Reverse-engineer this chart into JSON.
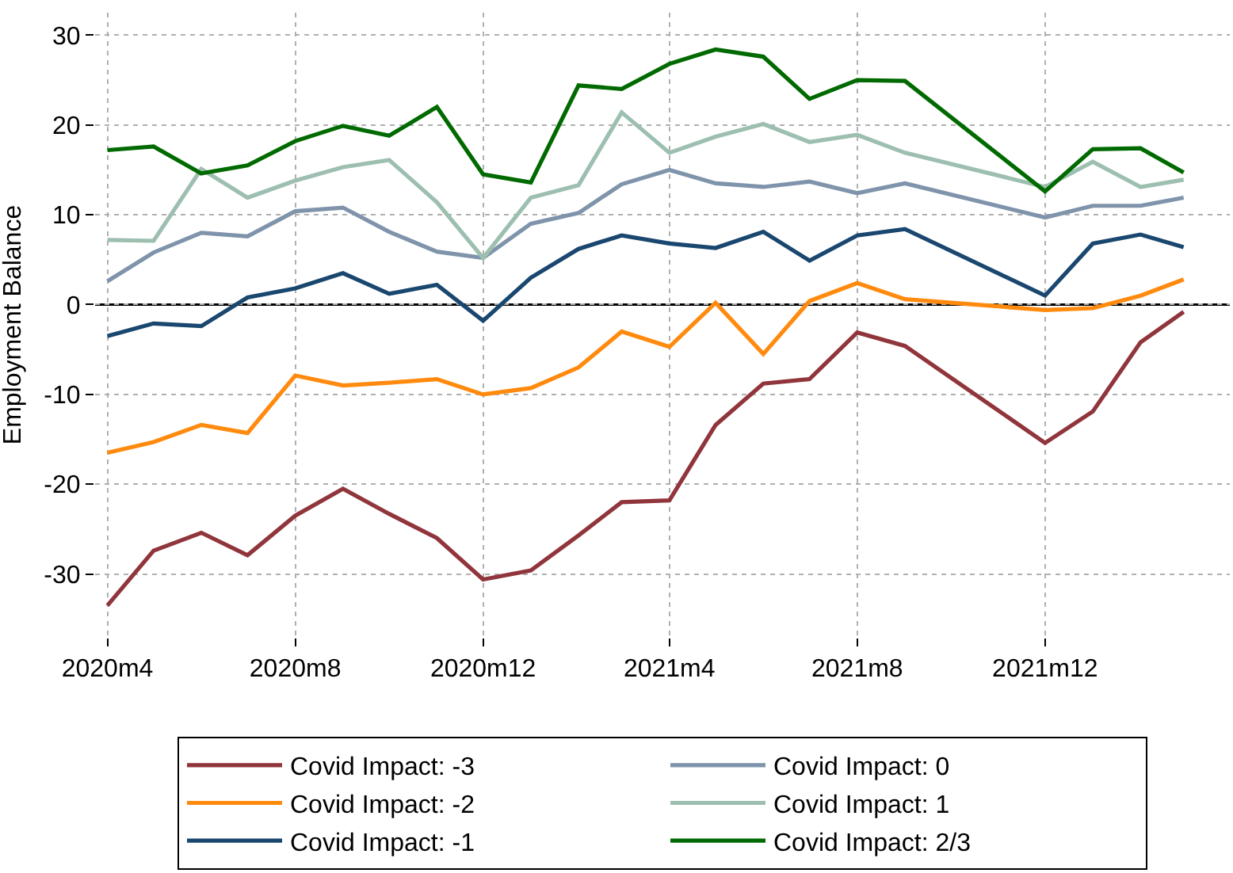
{
  "chart_data": {
    "type": "line",
    "ylabel": "Employment Balance",
    "x": [
      "2020-04",
      "2020-05",
      "2020-06",
      "2020-07",
      "2020-08",
      "2020-09",
      "2020-10",
      "2020-11",
      "2020-12",
      "2021-01",
      "2021-02",
      "2021-03",
      "2021-04",
      "2021-05",
      "2021-06",
      "2021-07",
      "2021-08",
      "2021-09",
      "2021-12",
      "2022-01",
      "2022-02",
      "2022-03"
    ],
    "series": [
      {
        "name": "Covid Impact: -3",
        "color": "#90353b",
        "values": [
          -33.5,
          -27.4,
          -25.4,
          -27.9,
          -23.5,
          -20.5,
          -23.3,
          -26.0,
          -30.6,
          -29.6,
          -25.7,
          -22.0,
          -21.8,
          -13.4,
          -8.8,
          -8.3,
          -3.1,
          -4.6,
          -15.4,
          -11.9,
          -4.2,
          -0.8
        ]
      },
      {
        "name": "Covid Impact: -2",
        "color": "#ff8a0e",
        "values": [
          -16.5,
          -15.3,
          -13.4,
          -14.3,
          -7.9,
          -9.0,
          -8.7,
          -8.3,
          -10.0,
          -9.3,
          -7.0,
          -3.0,
          -4.7,
          0.2,
          -5.5,
          0.4,
          2.4,
          0.6,
          -0.6,
          -0.4,
          1.0,
          2.8
        ]
      },
      {
        "name": "Covid Impact: -1",
        "color": "#1a476f",
        "values": [
          -3.5,
          -2.1,
          -2.4,
          0.8,
          1.8,
          3.5,
          1.2,
          2.2,
          -1.8,
          3.0,
          6.2,
          7.7,
          6.8,
          6.3,
          8.1,
          4.9,
          7.7,
          8.4,
          1.0,
          6.8,
          7.8,
          6.4
        ]
      },
      {
        "name": "Covid Impact: 0",
        "color": "#7f94ab",
        "values": [
          2.6,
          5.8,
          8.0,
          7.6,
          10.4,
          10.8,
          8.1,
          5.9,
          5.2,
          9.0,
          10.2,
          13.4,
          15.0,
          13.5,
          13.1,
          13.7,
          12.4,
          13.5,
          9.7,
          11.0,
          11.0,
          11.9
        ]
      },
      {
        "name": "Covid Impact: 1",
        "color": "#9dbfb0",
        "values": [
          7.2,
          7.1,
          15.1,
          11.9,
          13.8,
          15.3,
          16.1,
          11.4,
          5.2,
          11.9,
          13.3,
          21.4,
          16.9,
          18.7,
          20.1,
          18.1,
          18.9,
          16.9,
          13.1,
          15.9,
          13.1,
          13.9
        ]
      },
      {
        "name": "Covid Impact: 2/3",
        "color": "#006a00",
        "values": [
          17.2,
          17.6,
          14.6,
          15.5,
          18.2,
          19.9,
          18.8,
          22.0,
          14.5,
          13.6,
          24.4,
          24.0,
          26.8,
          28.4,
          27.6,
          22.9,
          25.0,
          24.9,
          12.6,
          17.3,
          17.4,
          14.7
        ]
      }
    ],
    "xlim": [
      "2020-03-24",
      "2022-03-31"
    ],
    "xticks": [
      {
        "value": "2020-04",
        "label": "2020m4"
      },
      {
        "value": "2020-08",
        "label": "2020m8"
      },
      {
        "value": "2020-12",
        "label": "2020m12"
      },
      {
        "value": "2021-04",
        "label": "2021m4"
      },
      {
        "value": "2021-08",
        "label": "2021m8"
      },
      {
        "value": "2021-12",
        "label": "2021m12"
      }
    ],
    "ylim": [
      -37,
      32.5
    ],
    "yticks": [
      -30,
      -20,
      -10,
      0,
      10,
      20,
      30
    ],
    "ref_lines": [
      {
        "axis": "y",
        "value": 0,
        "color": "#000000"
      }
    ],
    "grid": true,
    "legend": "bottom",
    "marker": "none",
    "line_style": "solid"
  }
}
